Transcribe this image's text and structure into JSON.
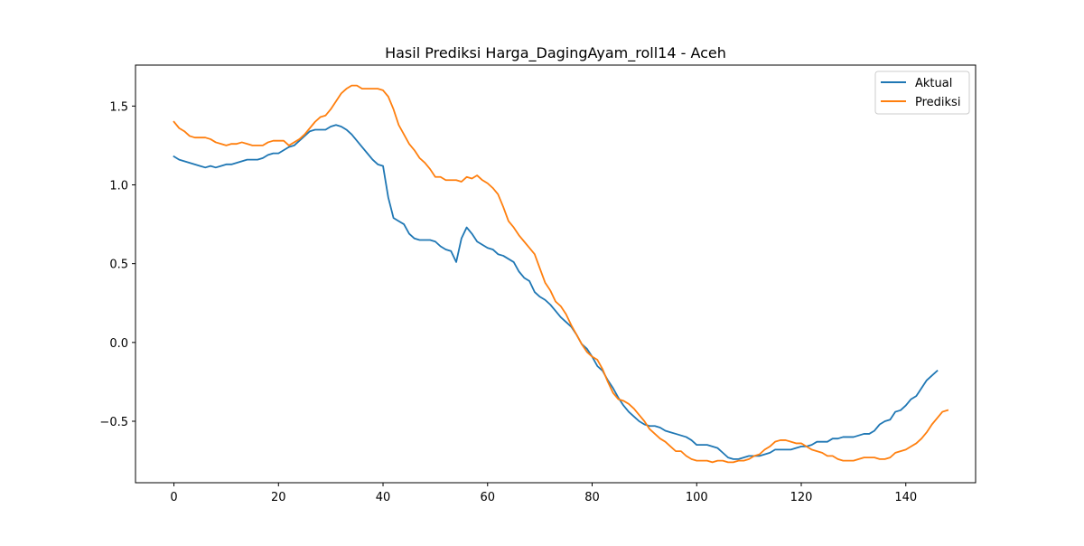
{
  "chart_data": {
    "type": "line",
    "title": "Hasil Prediksi Harga_DagingAyam_roll14 - Aceh",
    "xlabel": "",
    "ylabel": "",
    "xlim": [
      -7.35,
      153.35
    ],
    "ylim": [
      -0.89,
      1.76
    ],
    "xticks": [
      0,
      20,
      40,
      60,
      80,
      100,
      120,
      140
    ],
    "yticks": [
      -0.5,
      0.0,
      0.5,
      1.0,
      1.5
    ],
    "grid": false,
    "legend_position": "top-right",
    "colors": {
      "Aktual": "#1f77b4",
      "Prediksi": "#ff7f0e"
    },
    "series": [
      {
        "name": "Aktual",
        "values": [
          1.18,
          1.16,
          1.15,
          1.14,
          1.13,
          1.12,
          1.11,
          1.12,
          1.11,
          1.12,
          1.13,
          1.13,
          1.14,
          1.15,
          1.16,
          1.16,
          1.16,
          1.17,
          1.19,
          1.2,
          1.2,
          1.22,
          1.24,
          1.25,
          1.28,
          1.31,
          1.34,
          1.35,
          1.35,
          1.35,
          1.37,
          1.38,
          1.37,
          1.35,
          1.32,
          1.28,
          1.24,
          1.2,
          1.16,
          1.13,
          1.12,
          0.92,
          0.79,
          0.77,
          0.75,
          0.69,
          0.66,
          0.65,
          0.65,
          0.65,
          0.64,
          0.61,
          0.59,
          0.58,
          0.51,
          0.66,
          0.73,
          0.69,
          0.64,
          0.62,
          0.6,
          0.59,
          0.56,
          0.55,
          0.53,
          0.51,
          0.45,
          0.41,
          0.39,
          0.32,
          0.29,
          0.27,
          0.24,
          0.2,
          0.16,
          0.13,
          0.1,
          0.05,
          -0.01,
          -0.04,
          -0.09,
          -0.15,
          -0.18,
          -0.24,
          -0.29,
          -0.35,
          -0.4,
          -0.44,
          -0.47,
          -0.5,
          -0.52,
          -0.53,
          -0.53,
          -0.54,
          -0.56,
          -0.57,
          -0.58,
          -0.59,
          -0.6,
          -0.62,
          -0.65,
          -0.65,
          -0.65,
          -0.66,
          -0.67,
          -0.7,
          -0.73,
          -0.74,
          -0.74,
          -0.73,
          -0.72,
          -0.72,
          -0.72,
          -0.71,
          -0.7,
          -0.68,
          -0.68,
          -0.68,
          -0.68,
          -0.67,
          -0.66,
          -0.66,
          -0.65,
          -0.63,
          -0.63,
          -0.63,
          -0.61,
          -0.61,
          -0.6,
          -0.6,
          -0.6,
          -0.59,
          -0.58,
          -0.58,
          -0.56,
          -0.52,
          -0.5,
          -0.49,
          -0.44,
          -0.43,
          -0.4,
          -0.36,
          -0.34,
          -0.29,
          -0.24,
          -0.21,
          -0.18
        ]
      },
      {
        "name": "Prediksi",
        "values": [
          1.4,
          1.36,
          1.34,
          1.31,
          1.3,
          1.3,
          1.3,
          1.29,
          1.27,
          1.26,
          1.25,
          1.26,
          1.26,
          1.27,
          1.26,
          1.25,
          1.25,
          1.25,
          1.27,
          1.28,
          1.28,
          1.28,
          1.25,
          1.27,
          1.29,
          1.32,
          1.36,
          1.4,
          1.43,
          1.44,
          1.48,
          1.53,
          1.58,
          1.61,
          1.63,
          1.63,
          1.61,
          1.61,
          1.61,
          1.61,
          1.6,
          1.56,
          1.48,
          1.38,
          1.32,
          1.26,
          1.22,
          1.17,
          1.14,
          1.1,
          1.05,
          1.05,
          1.03,
          1.03,
          1.03,
          1.02,
          1.05,
          1.04,
          1.06,
          1.03,
          1.01,
          0.98,
          0.94,
          0.86,
          0.77,
          0.73,
          0.68,
          0.64,
          0.6,
          0.56,
          0.47,
          0.38,
          0.33,
          0.26,
          0.23,
          0.18,
          0.11,
          0.05,
          -0.01,
          -0.06,
          -0.09,
          -0.11,
          -0.17,
          -0.25,
          -0.32,
          -0.36,
          -0.37,
          -0.39,
          -0.42,
          -0.46,
          -0.5,
          -0.55,
          -0.58,
          -0.61,
          -0.63,
          -0.66,
          -0.69,
          -0.69,
          -0.72,
          -0.74,
          -0.75,
          -0.75,
          -0.75,
          -0.76,
          -0.75,
          -0.75,
          -0.76,
          -0.76,
          -0.75,
          -0.75,
          -0.74,
          -0.72,
          -0.71,
          -0.68,
          -0.66,
          -0.63,
          -0.62,
          -0.62,
          -0.63,
          -0.64,
          -0.64,
          -0.66,
          -0.68,
          -0.69,
          -0.7,
          -0.72,
          -0.72,
          -0.74,
          -0.75,
          -0.75,
          -0.75,
          -0.74,
          -0.73,
          -0.73,
          -0.73,
          -0.74,
          -0.74,
          -0.73,
          -0.7,
          -0.69,
          -0.68,
          -0.66,
          -0.64,
          -0.61,
          -0.57,
          -0.52,
          -0.48,
          -0.44,
          -0.43
        ]
      }
    ]
  }
}
